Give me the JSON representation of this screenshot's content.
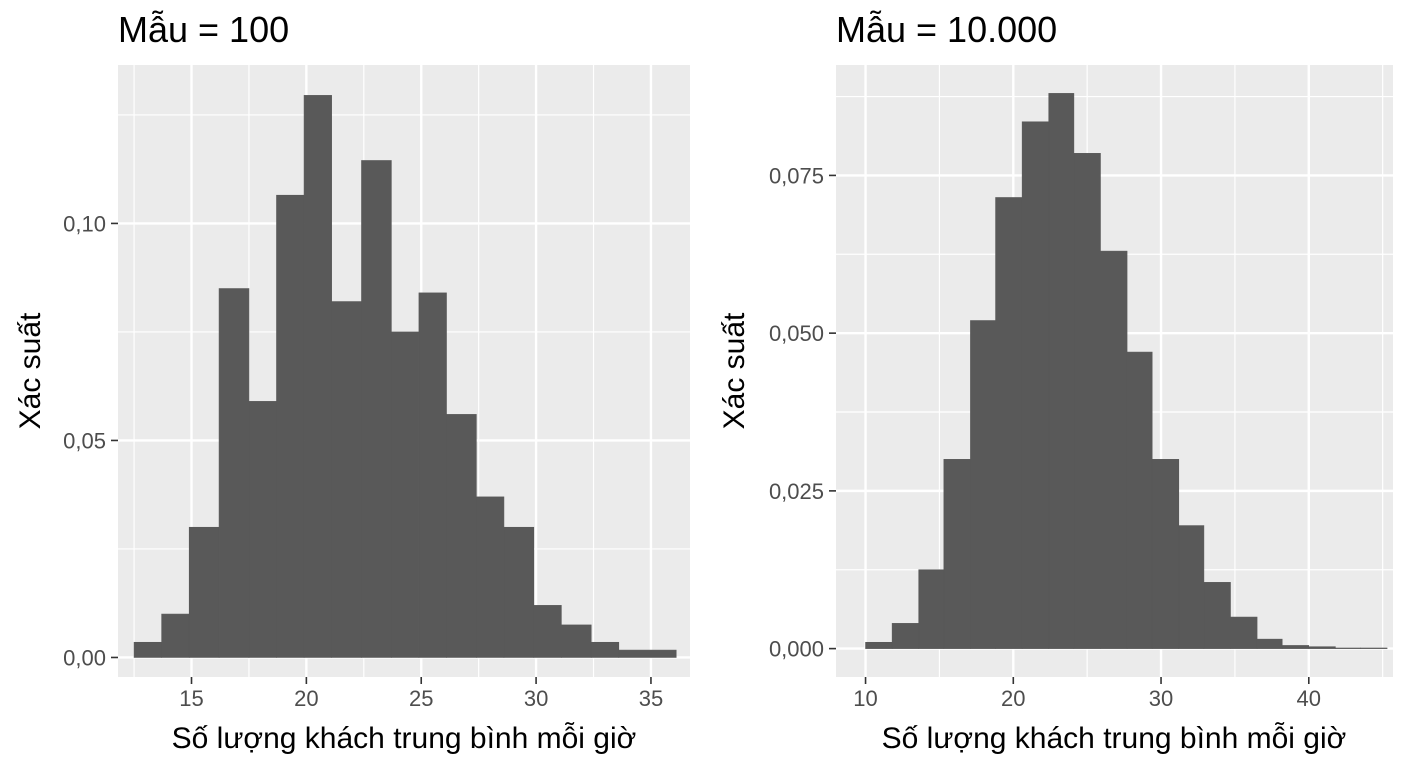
{
  "chart_data": [
    {
      "type": "bar",
      "title": "Mẫu = 100",
      "xlabel": "Số lượng khách trung bình mỗi giờ",
      "ylabel": "Xác suất",
      "xlim": [
        11.8,
        36.7
      ],
      "ylim": [
        -0.0045,
        0.1365
      ],
      "x_ticks": [
        15,
        20,
        25,
        30,
        35
      ],
      "x_tick_labels": [
        "15",
        "20",
        "25",
        "30",
        "35"
      ],
      "y_ticks": [
        0,
        0.05,
        0.1
      ],
      "y_tick_labels": [
        "0,00",
        "0,05",
        "0,10"
      ],
      "grid": true,
      "bar_color": "#595959",
      "panel_color": "#ebebeb",
      "bins": [
        {
          "x0": 12.5,
          "x1": 13.7,
          "value": 0.0035
        },
        {
          "x0": 13.7,
          "x1": 14.9,
          "value": 0.01
        },
        {
          "x0": 14.9,
          "x1": 16.2,
          "value": 0.03
        },
        {
          "x0": 16.2,
          "x1": 17.5,
          "value": 0.085
        },
        {
          "x0": 17.5,
          "x1": 18.7,
          "value": 0.059
        },
        {
          "x0": 18.7,
          "x1": 19.9,
          "value": 0.1065
        },
        {
          "x0": 19.9,
          "x1": 21.1,
          "value": 0.1295
        },
        {
          "x0": 21.1,
          "x1": 22.4,
          "value": 0.082
        },
        {
          "x0": 22.4,
          "x1": 23.7,
          "value": 0.1145
        },
        {
          "x0": 23.7,
          "x1": 24.9,
          "value": 0.075
        },
        {
          "x0": 24.9,
          "x1": 26.1,
          "value": 0.084
        },
        {
          "x0": 26.1,
          "x1": 27.4,
          "value": 0.056
        },
        {
          "x0": 27.4,
          "x1": 28.6,
          "value": 0.037
        },
        {
          "x0": 28.6,
          "x1": 29.9,
          "value": 0.03
        },
        {
          "x0": 29.9,
          "x1": 31.1,
          "value": 0.012
        },
        {
          "x0": 31.1,
          "x1": 32.4,
          "value": 0.0075
        },
        {
          "x0": 32.4,
          "x1": 33.6,
          "value": 0.0035
        },
        {
          "x0": 33.6,
          "x1": 36.1,
          "value": 0.0017
        }
      ]
    },
    {
      "type": "bar",
      "title": "Mẫu = 10.000",
      "xlabel": "Số lượng khách trung bình mỗi giờ",
      "ylabel": "Xác suất",
      "xlim": [
        8.0,
        45.7
      ],
      "ylim": [
        -0.0045,
        0.0925
      ],
      "x_ticks": [
        10,
        20,
        30,
        40
      ],
      "x_tick_labels": [
        "10",
        "20",
        "30",
        "40"
      ],
      "y_ticks": [
        0,
        0.025,
        0.05,
        0.075
      ],
      "y_tick_labels": [
        "0,000",
        "0,025",
        "0,050",
        "0,075"
      ],
      "grid": true,
      "bar_color": "#595959",
      "panel_color": "#ebebeb",
      "bins": [
        {
          "x0": 10.0,
          "x1": 11.8,
          "value": 0.001
        },
        {
          "x0": 11.8,
          "x1": 13.6,
          "value": 0.004
        },
        {
          "x0": 13.6,
          "x1": 15.3,
          "value": 0.0125
        },
        {
          "x0": 15.3,
          "x1": 17.1,
          "value": 0.03
        },
        {
          "x0": 17.1,
          "x1": 18.8,
          "value": 0.052
        },
        {
          "x0": 18.8,
          "x1": 20.6,
          "value": 0.0715
        },
        {
          "x0": 20.6,
          "x1": 22.4,
          "value": 0.0835
        },
        {
          "x0": 22.4,
          "x1": 24.1,
          "value": 0.088
        },
        {
          "x0": 24.1,
          "x1": 25.9,
          "value": 0.0785
        },
        {
          "x0": 25.9,
          "x1": 27.7,
          "value": 0.063
        },
        {
          "x0": 27.7,
          "x1": 29.4,
          "value": 0.047
        },
        {
          "x0": 29.4,
          "x1": 31.2,
          "value": 0.03
        },
        {
          "x0": 31.2,
          "x1": 32.9,
          "value": 0.0195
        },
        {
          "x0": 32.9,
          "x1": 34.7,
          "value": 0.0105
        },
        {
          "x0": 34.7,
          "x1": 36.5,
          "value": 0.005
        },
        {
          "x0": 36.5,
          "x1": 38.2,
          "value": 0.0015
        },
        {
          "x0": 38.2,
          "x1": 40.0,
          "value": 0.0005
        },
        {
          "x0": 40.0,
          "x1": 41.8,
          "value": 0.0003
        },
        {
          "x0": 41.8,
          "x1": 43.5,
          "value": 0.0001
        },
        {
          "x0": 43.5,
          "x1": 45.3,
          "value": 0.0001
        }
      ]
    }
  ]
}
